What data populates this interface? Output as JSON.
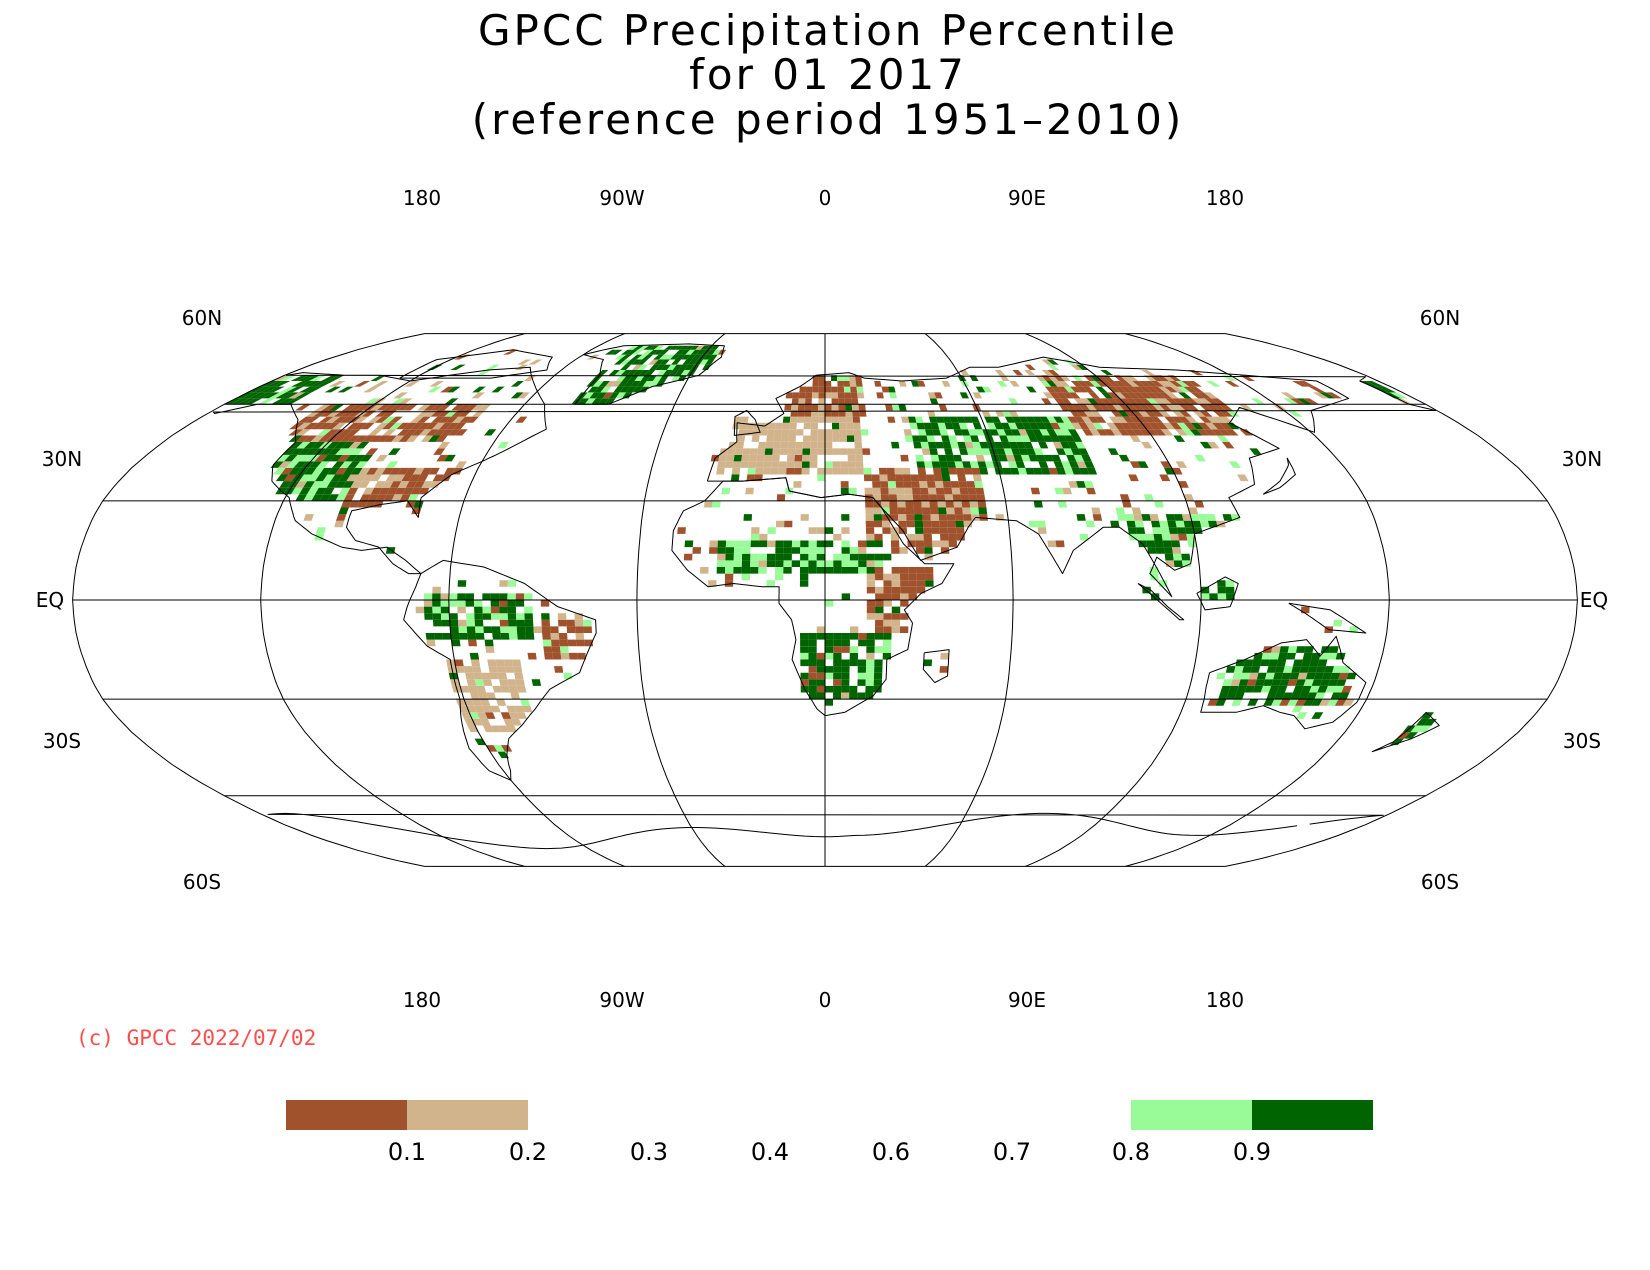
{
  "title": {
    "line1": "GPCC Precipitation Percentile",
    "line2": "for 01 2017",
    "line3": "(reference period 1951–2010)"
  },
  "credit": "(c) GPCC 2022/07/02",
  "colors": {
    "very_dry": "#a0522d",
    "dry": "#d2b48c",
    "wet": "#98fb98",
    "very_wet": "#006400",
    "credit": "#ff4d4d"
  },
  "map": {
    "projection": "robinson",
    "lon_labels": [
      "180",
      "90W",
      "0",
      "90E",
      "180"
    ],
    "lat_labels": [
      "60N",
      "30N",
      "EQ",
      "30S",
      "60S"
    ]
  },
  "colorbar": {
    "ticks": [
      "0.1",
      "0.2",
      "0.3",
      "0.4",
      "0.6",
      "0.7",
      "0.8",
      "0.9"
    ],
    "filled_classes": [
      {
        "range": "<0.1",
        "color_key": "very_dry"
      },
      {
        "range": "0.1-0.2",
        "color_key": "dry"
      },
      {
        "range": "0.8-0.9",
        "color_key": "wet"
      },
      {
        "range": ">0.9",
        "color_key": "very_wet"
      }
    ]
  },
  "regions": [
    {
      "name": "Alaska",
      "class": "very_wet"
    },
    {
      "name": "Western US",
      "class": "very_wet"
    },
    {
      "name": "Eastern US",
      "class": "very_dry"
    },
    {
      "name": "Canada",
      "class": "very_dry"
    },
    {
      "name": "Greenland",
      "class": "very_wet"
    },
    {
      "name": "Amazon",
      "class": "very_wet"
    },
    {
      "name": "Northeast Brazil",
      "class": "very_dry"
    },
    {
      "name": "Southern South America",
      "class": "dry"
    },
    {
      "name": "Europe",
      "class": "dry"
    },
    {
      "name": "Scandinavia",
      "class": "very_dry"
    },
    {
      "name": "Sahel",
      "class": "very_wet"
    },
    {
      "name": "Middle East",
      "class": "very_dry"
    },
    {
      "name": "East Africa",
      "class": "very_dry"
    },
    {
      "name": "Southern Africa",
      "class": "very_wet"
    },
    {
      "name": "Central Asia",
      "class": "very_wet"
    },
    {
      "name": "Siberia",
      "class": "very_dry"
    },
    {
      "name": "Southeast Asia",
      "class": "very_wet"
    },
    {
      "name": "Australia",
      "class": "very_wet"
    },
    {
      "name": "New Zealand",
      "class": "very_wet"
    }
  ]
}
